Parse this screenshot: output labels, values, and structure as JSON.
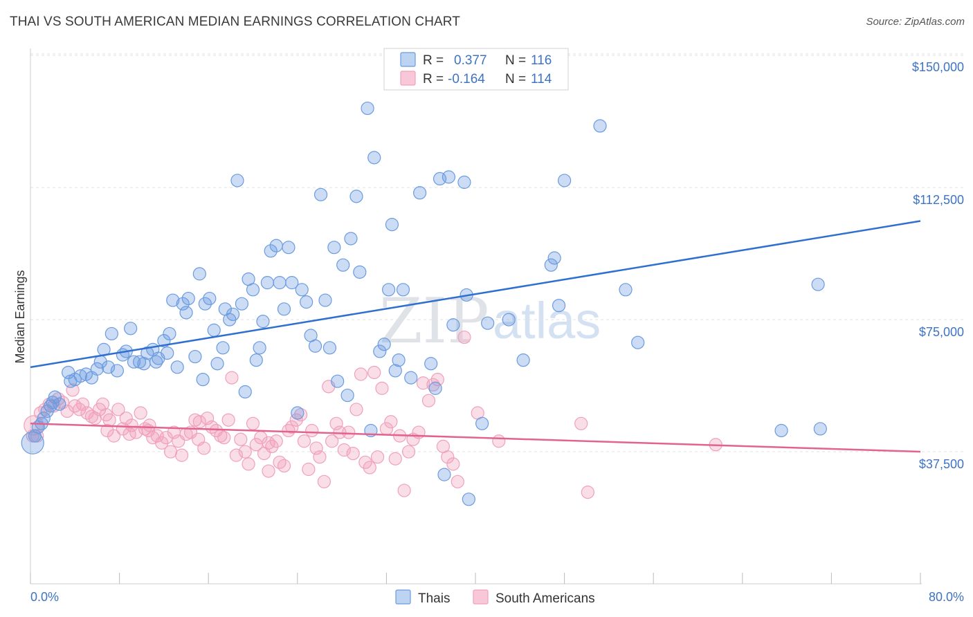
{
  "title": "THAI VS SOUTH AMERICAN MEDIAN EARNINGS CORRELATION CHART",
  "source": "Source: ZipAtlas.com",
  "watermark": {
    "part1": "ZIP",
    "part2": "atlas"
  },
  "colors": {
    "thais": "#6a9be0",
    "thais_line": "#2f6fcf",
    "south_americans": "#f0a0bb",
    "south_americans_line": "#e2638f",
    "tick_text": "#3d73c4"
  },
  "legend": {
    "rows": [
      {
        "r_label": "R =",
        "r_value": "0.377",
        "n_label": "N =",
        "n_value": "116"
      },
      {
        "r_label": "R =",
        "r_value": "-0.164",
        "n_label": "N =",
        "n_value": "114"
      }
    ]
  },
  "bottom_legend": {
    "thais": "Thais",
    "south_americans": "South Americans"
  },
  "chart_data": {
    "type": "scatter",
    "title": "THAI VS SOUTH AMERICAN MEDIAN EARNINGS CORRELATION CHART",
    "xlabel": "",
    "ylabel": "Median Earnings",
    "xlim": [
      0,
      80
    ],
    "ylim": [
      0,
      152000
    ],
    "x_tick_labels": [
      "0.0%",
      "80.0%"
    ],
    "y_ticks": [
      37500,
      75000,
      112500,
      150000
    ],
    "y_tick_labels": [
      "$37,500",
      "$75,000",
      "$112,500",
      "$150,000"
    ],
    "grid": true,
    "legend_position": "top-center",
    "series": [
      {
        "name": "Thais",
        "r": 0.377,
        "n": 116,
        "trend": [
          [
            0,
            61500
          ],
          [
            80,
            103000
          ]
        ],
        "points": [
          [
            0.2,
            40000
          ],
          [
            0.4,
            42000
          ],
          [
            0.7,
            44500
          ],
          [
            1.0,
            45500
          ],
          [
            1.5,
            49000
          ],
          [
            1.8,
            50500
          ],
          [
            2.2,
            53000
          ],
          [
            2.6,
            51000
          ],
          [
            3.4,
            60000
          ],
          [
            3.6,
            57500
          ],
          [
            4.0,
            58000
          ],
          [
            4.5,
            59000
          ],
          [
            5.0,
            59500
          ],
          [
            5.5,
            58500
          ],
          [
            6.0,
            61000
          ],
          [
            6.3,
            63000
          ],
          [
            6.6,
            66500
          ],
          [
            7.0,
            61500
          ],
          [
            7.3,
            71000
          ],
          [
            7.8,
            60500
          ],
          [
            8.3,
            65000
          ],
          [
            8.6,
            66000
          ],
          [
            9.0,
            72500
          ],
          [
            9.3,
            63000
          ],
          [
            9.8,
            63000
          ],
          [
            10.2,
            62500
          ],
          [
            10.5,
            65500
          ],
          [
            11.0,
            66500
          ],
          [
            11.3,
            63000
          ],
          [
            11.5,
            64000
          ],
          [
            12.0,
            69000
          ],
          [
            12.3,
            65500
          ],
          [
            12.5,
            71000
          ],
          [
            12.8,
            80500
          ],
          [
            13.2,
            61500
          ],
          [
            13.7,
            79500
          ],
          [
            14.0,
            77000
          ],
          [
            14.2,
            81000
          ],
          [
            14.8,
            64500
          ],
          [
            15.2,
            88000
          ],
          [
            15.5,
            58000
          ],
          [
            15.7,
            79500
          ],
          [
            16.1,
            81000
          ],
          [
            16.5,
            72000
          ],
          [
            16.8,
            62500
          ],
          [
            17.3,
            67000
          ],
          [
            17.5,
            78000
          ],
          [
            17.9,
            75000
          ],
          [
            18.2,
            76500
          ],
          [
            18.6,
            114500
          ],
          [
            19.0,
            79500
          ],
          [
            19.3,
            54500
          ],
          [
            19.6,
            86500
          ],
          [
            20.0,
            83500
          ],
          [
            20.3,
            63500
          ],
          [
            20.6,
            67000
          ],
          [
            20.9,
            74500
          ],
          [
            21.3,
            85500
          ],
          [
            21.6,
            94500
          ],
          [
            22.1,
            96000
          ],
          [
            22.4,
            85500
          ],
          [
            22.8,
            78000
          ],
          [
            23.2,
            95500
          ],
          [
            23.5,
            85500
          ],
          [
            24.0,
            48500
          ],
          [
            24.4,
            83500
          ],
          [
            24.8,
            80000
          ],
          [
            25.2,
            70500
          ],
          [
            25.6,
            67500
          ],
          [
            26.1,
            110500
          ],
          [
            26.5,
            80500
          ],
          [
            26.9,
            67000
          ],
          [
            27.3,
            95500
          ],
          [
            27.6,
            57500
          ],
          [
            28.1,
            90500
          ],
          [
            28.5,
            53500
          ],
          [
            28.8,
            98000
          ],
          [
            29.3,
            110000
          ],
          [
            29.6,
            88500
          ],
          [
            30.3,
            135000
          ],
          [
            30.6,
            43500
          ],
          [
            30.9,
            121000
          ],
          [
            31.4,
            66000
          ],
          [
            31.8,
            68000
          ],
          [
            32.2,
            83500
          ],
          [
            32.5,
            102000
          ],
          [
            32.8,
            60500
          ],
          [
            33.1,
            63500
          ],
          [
            33.5,
            83500
          ],
          [
            34.2,
            58500
          ],
          [
            35.0,
            111000
          ],
          [
            36.0,
            62500
          ],
          [
            36.4,
            55500
          ],
          [
            36.8,
            115000
          ],
          [
            37.2,
            31000
          ],
          [
            37.6,
            115500
          ],
          [
            38.0,
            73500
          ],
          [
            39.0,
            114000
          ],
          [
            39.2,
            82000
          ],
          [
            39.4,
            24000
          ],
          [
            40.6,
            45500
          ],
          [
            41.1,
            74000
          ],
          [
            43.0,
            75000
          ],
          [
            44.3,
            63500
          ],
          [
            46.8,
            90500
          ],
          [
            47.1,
            92500
          ],
          [
            47.5,
            79000
          ],
          [
            48.0,
            114500
          ],
          [
            51.2,
            130000
          ],
          [
            53.5,
            83500
          ],
          [
            54.6,
            68500
          ],
          [
            67.5,
            43500
          ],
          [
            70.8,
            85000
          ],
          [
            71.0,
            44000
          ],
          [
            1.2,
            47000
          ],
          [
            2.0,
            51500
          ]
        ]
      },
      {
        "name": "South Americans",
        "r": -0.164,
        "n": 114,
        "trend": [
          [
            0,
            45500
          ],
          [
            80,
            37500
          ]
        ],
        "points": [
          [
            0.3,
            45000
          ],
          [
            0.6,
            42000
          ],
          [
            0.9,
            48500
          ],
          [
            1.3,
            49500
          ],
          [
            1.7,
            51000
          ],
          [
            2.1,
            50500
          ],
          [
            2.5,
            52500
          ],
          [
            2.9,
            51500
          ],
          [
            3.3,
            49000
          ],
          [
            3.8,
            55000
          ],
          [
            4.4,
            49500
          ],
          [
            4.7,
            51000
          ],
          [
            5.1,
            48500
          ],
          [
            5.5,
            47500
          ],
          [
            5.8,
            47000
          ],
          [
            6.2,
            49500
          ],
          [
            6.5,
            51000
          ],
          [
            6.8,
            48000
          ],
          [
            7.1,
            46500
          ],
          [
            7.5,
            42000
          ],
          [
            7.9,
            49500
          ],
          [
            8.3,
            44000
          ],
          [
            8.6,
            47000
          ],
          [
            9.1,
            45000
          ],
          [
            9.5,
            43000
          ],
          [
            9.9,
            48500
          ],
          [
            10.3,
            44000
          ],
          [
            10.7,
            45000
          ],
          [
            11.0,
            41500
          ],
          [
            11.4,
            42000
          ],
          [
            11.8,
            40000
          ],
          [
            12.2,
            41500
          ],
          [
            12.6,
            37500
          ],
          [
            12.9,
            43000
          ],
          [
            13.3,
            40500
          ],
          [
            13.6,
            36500
          ],
          [
            14.0,
            42500
          ],
          [
            14.4,
            43000
          ],
          [
            14.8,
            46500
          ],
          [
            15.2,
            46000
          ],
          [
            15.6,
            38500
          ],
          [
            15.9,
            47000
          ],
          [
            16.3,
            44500
          ],
          [
            16.7,
            43500
          ],
          [
            17.1,
            42000
          ],
          [
            17.4,
            41500
          ],
          [
            17.8,
            46500
          ],
          [
            18.1,
            58500
          ],
          [
            18.5,
            36500
          ],
          [
            18.9,
            41000
          ],
          [
            19.3,
            37500
          ],
          [
            19.6,
            34000
          ],
          [
            20.0,
            45500
          ],
          [
            20.3,
            39500
          ],
          [
            20.7,
            41500
          ],
          [
            21.0,
            37000
          ],
          [
            21.4,
            32000
          ],
          [
            21.7,
            39000
          ],
          [
            22.1,
            40500
          ],
          [
            22.4,
            34500
          ],
          [
            22.8,
            33500
          ],
          [
            23.2,
            43500
          ],
          [
            23.5,
            44500
          ],
          [
            23.9,
            46500
          ],
          [
            24.3,
            48000
          ],
          [
            24.6,
            40500
          ],
          [
            25.0,
            32500
          ],
          [
            25.3,
            43500
          ],
          [
            25.7,
            38500
          ],
          [
            26.0,
            36000
          ],
          [
            26.4,
            29000
          ],
          [
            26.8,
            56000
          ],
          [
            27.1,
            40500
          ],
          [
            27.5,
            45500
          ],
          [
            27.8,
            43000
          ],
          [
            28.2,
            38000
          ],
          [
            28.6,
            43000
          ],
          [
            29.0,
            37000
          ],
          [
            29.3,
            49500
          ],
          [
            29.7,
            59500
          ],
          [
            30.1,
            34500
          ],
          [
            30.5,
            33000
          ],
          [
            30.9,
            60000
          ],
          [
            31.2,
            36000
          ],
          [
            31.6,
            55500
          ],
          [
            32.0,
            44000
          ],
          [
            32.4,
            46000
          ],
          [
            32.8,
            35500
          ],
          [
            33.2,
            42000
          ],
          [
            33.6,
            26500
          ],
          [
            34.0,
            37500
          ],
          [
            34.4,
            41000
          ],
          [
            34.9,
            43000
          ],
          [
            35.3,
            57000
          ],
          [
            35.8,
            52000
          ],
          [
            36.2,
            56500
          ],
          [
            36.6,
            58000
          ],
          [
            37.1,
            39000
          ],
          [
            37.5,
            36000
          ],
          [
            38.0,
            34000
          ],
          [
            38.4,
            29000
          ],
          [
            39.0,
            70000
          ],
          [
            40.2,
            48500
          ],
          [
            42.1,
            40500
          ],
          [
            49.5,
            45500
          ],
          [
            50.1,
            26000
          ],
          [
            61.6,
            39500
          ],
          [
            4.0,
            50500
          ],
          [
            6.9,
            43500
          ],
          [
            8.9,
            42500
          ],
          [
            10.6,
            43500
          ],
          [
            15.1,
            41000
          ],
          [
            21.4,
            40000
          ],
          [
            0.2,
            42000
          ]
        ]
      }
    ]
  }
}
